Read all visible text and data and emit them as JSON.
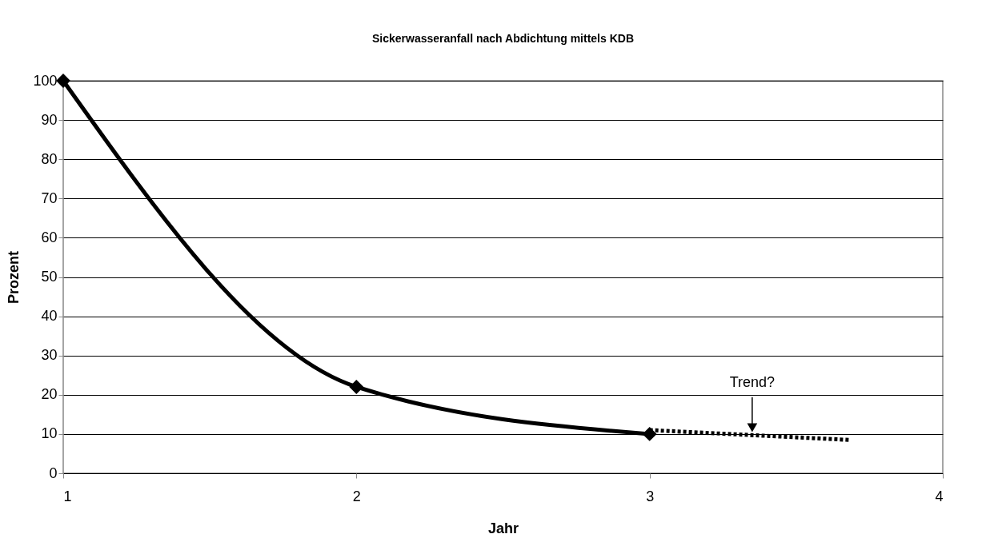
{
  "chart_data": {
    "type": "line",
    "title": "Sickerwasseranfall nach Abdichtung mittels KDB",
    "xlabel": "Jahr",
    "ylabel": "Prozent",
    "xlim": [
      1,
      4
    ],
    "xticks": [
      1,
      2,
      3,
      4
    ],
    "ylim": [
      0,
      100
    ],
    "yticks": [
      0,
      10,
      20,
      30,
      40,
      50,
      60,
      70,
      80,
      90,
      100
    ],
    "grid": "y",
    "series": [
      {
        "color": "#000000",
        "x": [
          1,
          2,
          3
        ],
        "values": [
          100,
          22,
          10
        ],
        "marker": "diamond",
        "line_style": "solid"
      },
      {
        "type": "line",
        "color": "#000000",
        "x": [
          3,
          3.68
        ],
        "values": [
          11,
          8.5
        ],
        "marker": "none",
        "line_style": "dotted"
      }
    ],
    "annotations": [
      {
        "text": "Trend?",
        "x": 3.35,
        "y": 10
      }
    ]
  }
}
